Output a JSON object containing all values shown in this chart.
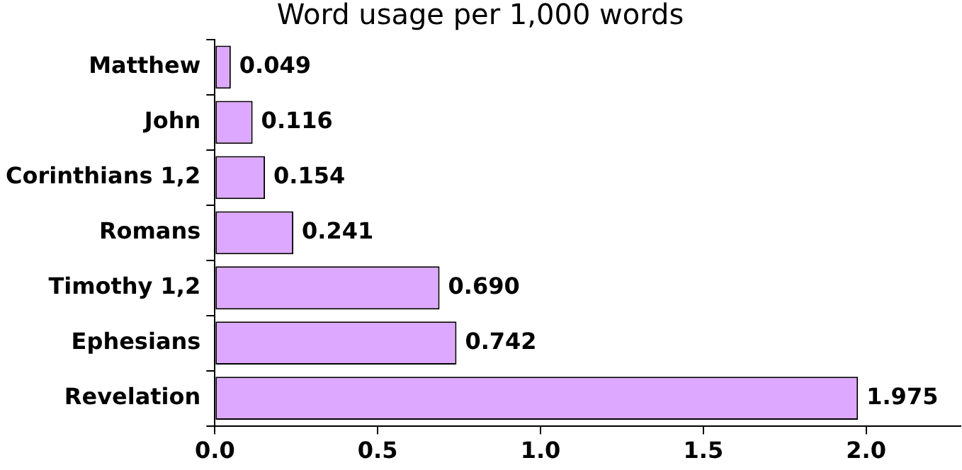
{
  "chart_data": {
    "type": "bar",
    "orientation": "horizontal",
    "title": "Word usage per 1,000 words",
    "categories": [
      "Matthew",
      "John",
      "Corinthians 1,2",
      "Romans",
      "Timothy 1,2",
      "Ephesians",
      "Revelation"
    ],
    "values": [
      0.049,
      0.116,
      0.154,
      0.241,
      0.69,
      0.742,
      1.975
    ],
    "value_labels": [
      "0.049",
      "0.116",
      "0.154",
      "0.241",
      "0.690",
      "0.742",
      "1.975"
    ],
    "color": "#dda8ff",
    "xlim": [
      0,
      2.29
    ],
    "xticks": [
      {
        "value": 0,
        "label": "0.0"
      },
      {
        "value": 0.5,
        "label": "0.5"
      },
      {
        "value": 1,
        "label": "1.0"
      },
      {
        "value": 1.5,
        "label": "1.5"
      },
      {
        "value": 2,
        "label": "2.0"
      }
    ],
    "grid": false,
    "legend": false
  }
}
